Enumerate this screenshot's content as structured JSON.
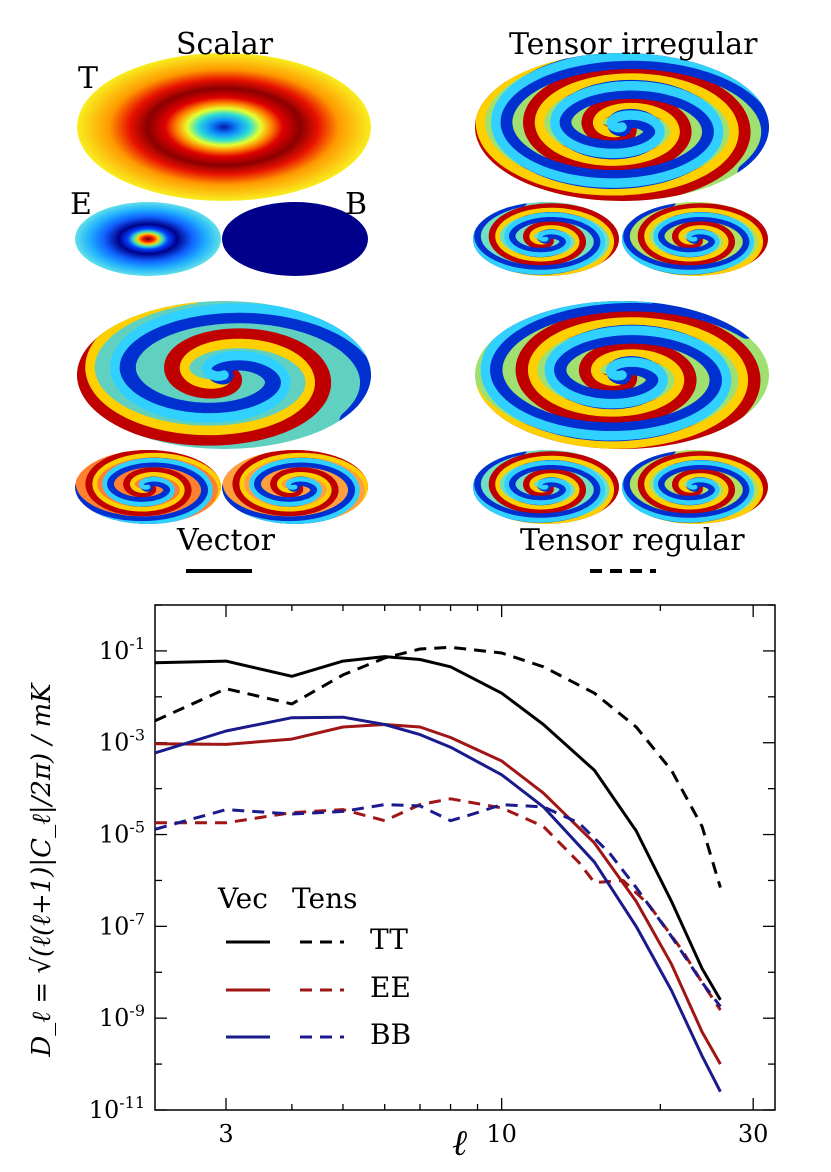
{
  "maps": {
    "scalar_title": "Scalar",
    "tensor_irregular_title": "Tensor irregular",
    "vector_title": "Vector",
    "tensor_regular_title": "Tensor regular",
    "t_label": "T",
    "e_label": "E",
    "b_label": "B",
    "vector_line_style": "solid",
    "tensor_regular_line_style": "dashed"
  },
  "chart_data": {
    "type": "line",
    "xlabel": "ℓ",
    "ylabel": "D_ℓ = √(ℓ(ℓ+1)|C_ℓ|/2π) / mK",
    "xscale": "log",
    "yscale": "log",
    "xlim": [
      2.2,
      33
    ],
    "ylim": [
      1e-11,
      1
    ],
    "xticks": [
      {
        "value": 3,
        "label": "3"
      },
      {
        "value": 10,
        "label": "10"
      },
      {
        "value": 30,
        "label": "30"
      }
    ],
    "yticks": [
      {
        "value": 0.1,
        "base": "10",
        "exp": "-1"
      },
      {
        "value": 0.001,
        "base": "10",
        "exp": "-3"
      },
      {
        "value": 1e-05,
        "base": "10",
        "exp": "-5"
      },
      {
        "value": 1e-07,
        "base": "10",
        "exp": "-7"
      },
      {
        "value": 1e-09,
        "base": "10",
        "exp": "-9"
      },
      {
        "value": 1e-11,
        "base": "10",
        "exp": "-11"
      }
    ],
    "legend": {
      "placement": "bottom-left",
      "col_headers": [
        "Vec",
        "Tens"
      ],
      "rows": [
        "TT",
        "EE",
        "BB"
      ]
    },
    "colors": {
      "TT": "#000000",
      "EE": "#a01515",
      "BB": "#1a1a8c"
    },
    "series": [
      {
        "spectrum": "TT",
        "type": "Vec",
        "style": "solid",
        "points": [
          [
            2.2,
            0.055
          ],
          [
            3,
            0.06
          ],
          [
            4,
            0.028
          ],
          [
            5,
            0.06
          ],
          [
            6,
            0.075
          ],
          [
            7,
            0.065
          ],
          [
            8,
            0.045
          ],
          [
            10,
            0.012
          ],
          [
            12,
            0.0025
          ],
          [
            15,
            0.00025
          ],
          [
            18,
            1.2e-05
          ],
          [
            21,
            3.5e-07
          ],
          [
            24,
            1.2e-08
          ],
          [
            26,
            2.5e-09
          ]
        ]
      },
      {
        "spectrum": "TT",
        "type": "Tens",
        "style": "dashed",
        "points": [
          [
            2.2,
            0.003
          ],
          [
            3,
            0.015
          ],
          [
            4,
            0.007
          ],
          [
            5,
            0.03
          ],
          [
            6,
            0.07
          ],
          [
            7,
            0.11
          ],
          [
            8,
            0.12
          ],
          [
            10,
            0.09
          ],
          [
            12,
            0.045
          ],
          [
            15,
            0.012
          ],
          [
            18,
            0.0022
          ],
          [
            21,
            0.00025
          ],
          [
            24,
            1.5e-05
          ],
          [
            26,
            7e-07
          ]
        ]
      },
      {
        "spectrum": "EE",
        "type": "Vec",
        "style": "solid",
        "points": [
          [
            2.2,
            0.00095
          ],
          [
            3,
            0.00092
          ],
          [
            4,
            0.0012
          ],
          [
            5,
            0.0022
          ],
          [
            6,
            0.0025
          ],
          [
            7,
            0.0022
          ],
          [
            8,
            0.0013
          ],
          [
            10,
            0.0004
          ],
          [
            12,
            8e-05
          ],
          [
            15,
            6.5e-06
          ],
          [
            18,
            3.5e-07
          ],
          [
            21,
            1.5e-08
          ],
          [
            24,
            5e-10
          ],
          [
            26,
            1e-10
          ]
        ]
      },
      {
        "spectrum": "EE",
        "type": "Tens",
        "style": "dashed",
        "points": [
          [
            2.2,
            1.8e-05
          ],
          [
            3,
            1.8e-05
          ],
          [
            4,
            3e-05
          ],
          [
            5,
            3.5e-05
          ],
          [
            6,
            2e-05
          ],
          [
            7,
            4.5e-05
          ],
          [
            8,
            6e-05
          ],
          [
            10,
            3.8e-05
          ],
          [
            12,
            1.5e-05
          ],
          [
            14,
            2.5e-06
          ],
          [
            15,
            9e-07
          ],
          [
            17,
            1e-06
          ],
          [
            19,
            3e-07
          ],
          [
            22,
            3e-08
          ],
          [
            24,
            6e-09
          ],
          [
            26,
            1.5e-09
          ]
        ]
      },
      {
        "spectrum": "BB",
        "type": "Vec",
        "style": "solid",
        "points": [
          [
            2.2,
            0.0006
          ],
          [
            3,
            0.0018
          ],
          [
            4,
            0.0035
          ],
          [
            5,
            0.0036
          ],
          [
            6,
            0.0025
          ],
          [
            7,
            0.0015
          ],
          [
            8,
            0.0008
          ],
          [
            10,
            0.0002
          ],
          [
            12,
            4e-05
          ],
          [
            15,
            2.5e-06
          ],
          [
            18,
            1e-07
          ],
          [
            21,
            4e-09
          ],
          [
            24,
            1.5e-10
          ],
          [
            26,
            2.5e-11
          ]
        ]
      },
      {
        "spectrum": "BB",
        "type": "Tens",
        "style": "dashed",
        "points": [
          [
            2.2,
            1.3e-05
          ],
          [
            3,
            3.5e-05
          ],
          [
            4,
            2.8e-05
          ],
          [
            5,
            3.2e-05
          ],
          [
            6,
            4.5e-05
          ],
          [
            7,
            4.2e-05
          ],
          [
            8,
            2e-05
          ],
          [
            9,
            3e-05
          ],
          [
            10,
            4.5e-05
          ],
          [
            12,
            4e-05
          ],
          [
            14,
            1.8e-05
          ],
          [
            16,
            4e-06
          ],
          [
            18,
            7e-07
          ],
          [
            21,
            6e-08
          ],
          [
            24,
            6e-09
          ],
          [
            26,
            1.8e-09
          ]
        ]
      }
    ]
  }
}
